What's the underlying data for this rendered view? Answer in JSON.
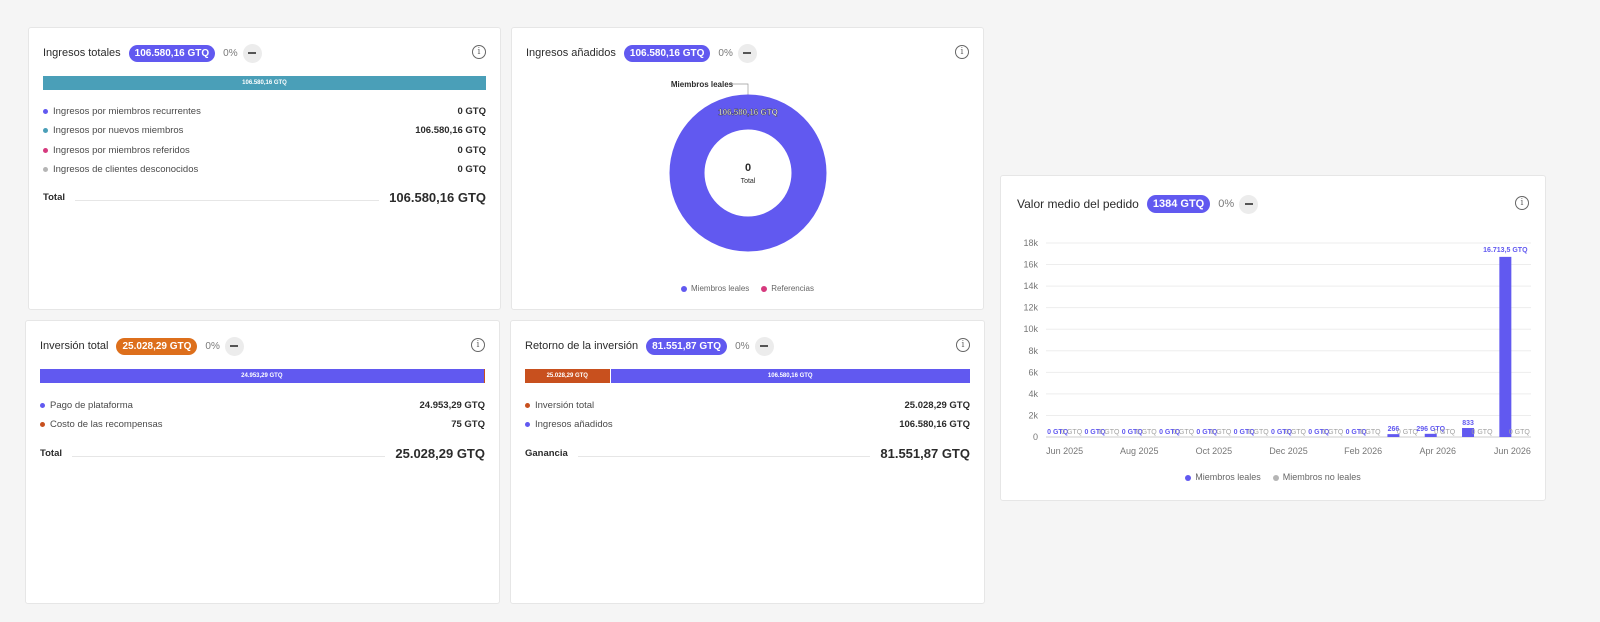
{
  "ingresos_totales": {
    "title": "Ingresos totales",
    "badge": "106.580,16 GTQ",
    "pct": "0%",
    "bar_label": "106.580,16 GTQ",
    "bar_color": "#4a9fb8",
    "items": [
      {
        "label": "Ingresos por miembros recurrentes",
        "value": "0 GTQ",
        "color": "#6159f0"
      },
      {
        "label": "Ingresos por nuevos miembros",
        "value": "106.580,16 GTQ",
        "color": "#4a9fb8"
      },
      {
        "label": "Ingresos por miembros referidos",
        "value": "0 GTQ",
        "color": "#d63a7e"
      },
      {
        "label": "Ingresos de clientes desconocidos",
        "value": "0 GTQ",
        "color": "#b5b5b5"
      }
    ],
    "total_label": "Total",
    "total_value": "106.580,16 GTQ"
  },
  "ingresos_anadidos": {
    "title": "Ingresos añadidos",
    "badge": "106.580,16 GTQ",
    "pct": "0%",
    "callout": "Miembros leales",
    "slice_label": "106.580,16 GTQ",
    "center_value": "0",
    "center_label": "Total",
    "legend": [
      {
        "label": "Miembros leales",
        "color": "#6159f0"
      },
      {
        "label": "Referencias",
        "color": "#d63a7e"
      }
    ]
  },
  "inversion_total": {
    "title": "Inversión total",
    "badge": "25.028,29 GTQ",
    "pct": "0%",
    "bar_label": "24.953,29 GTQ",
    "items": [
      {
        "label": "Pago de plataforma",
        "value": "24.953,29 GTQ",
        "color": "#6159f0"
      },
      {
        "label": "Costo de las recompensas",
        "value": "75 GTQ",
        "color": "#c8501e"
      }
    ],
    "total_label": "Total",
    "total_value": "25.028,29 GTQ"
  },
  "retorno": {
    "title": "Retorno de la inversión",
    "badge": "81.551,87 GTQ",
    "pct": "0%",
    "bar_left_label": "25.028,29 GTQ",
    "bar_right_label": "106.580,16 GTQ",
    "items": [
      {
        "label": "Inversión total",
        "value": "25.028,29 GTQ",
        "color": "#c8501e"
      },
      {
        "label": "Ingresos añadidos",
        "value": "106.580,16 GTQ",
        "color": "#6159f0"
      }
    ],
    "total_label": "Ganancia",
    "total_value": "81.551,87 GTQ"
  },
  "valor_medio": {
    "title": "Valor medio del pedido",
    "badge": "1384 GTQ",
    "pct": "0%",
    "legend": [
      {
        "label": "Miembros leales",
        "color": "#6159f0"
      },
      {
        "label": "Miembros no leales",
        "color": "#b5b5b5"
      }
    ]
  },
  "chart_data": {
    "type": "bar",
    "title": "Valor medio del pedido",
    "ylim": [
      0,
      18000
    ],
    "yticks": [
      "0",
      "2k",
      "4k",
      "6k",
      "8k",
      "10k",
      "12k",
      "14k",
      "16k",
      "18k"
    ],
    "xtick_labels": [
      "Jun 2025",
      "Aug 2025",
      "Oct 2025",
      "Dec 2025",
      "Feb 2026",
      "Apr 2026",
      "Jun 2026"
    ],
    "categories": [
      "Jun 2025",
      "Jul 2025",
      "Aug 2025",
      "Sep 2025",
      "Oct 2025",
      "Nov 2025",
      "Dec 2025",
      "Jan 2026",
      "Feb 2026",
      "Mar 2026",
      "Apr 2026",
      "May 2026",
      "Jun 2026"
    ],
    "grid": true,
    "legend_position": "bottom",
    "series": [
      {
        "name": "Miembros leales",
        "color": "#6159f0",
        "values": [
          0,
          0,
          0,
          0,
          0,
          0,
          0,
          0,
          0,
          266,
          296,
          833,
          16713.5
        ],
        "labels": [
          "0 GTQ",
          "0 GTQ",
          "0 GTQ",
          "0 GTQ",
          "0 GTQ",
          "0 GTQ",
          "0 GTQ",
          "0 GTQ",
          "0 GTQ",
          "266",
          "296 GTQ",
          "833",
          "16.713,5 GTQ"
        ]
      },
      {
        "name": "Miembros no leales",
        "color": "#b5b5b5",
        "values": [
          0,
          0,
          0,
          0,
          0,
          0,
          0,
          0,
          0,
          0,
          0,
          0,
          0
        ],
        "labels": [
          "0 GTQ",
          "0 GTQ",
          "0 GTQ",
          "0 GTQ",
          "0 GTQ",
          "0 GTQ",
          "0 GTQ",
          "0 GTQ",
          "0 GTQ",
          "0 GTQ",
          "0 GTQ",
          "0 GTQ",
          "0 GTQ"
        ]
      }
    ]
  }
}
